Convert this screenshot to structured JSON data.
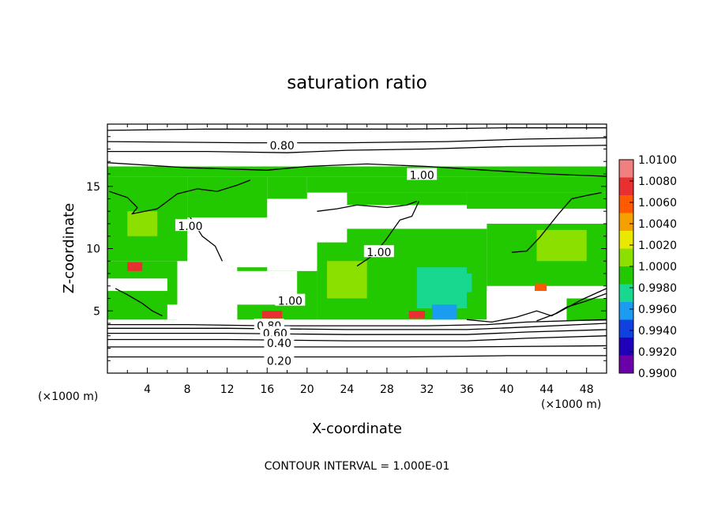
{
  "chart_data": {
    "type": "heatmap",
    "title": "saturation ratio",
    "xlabel": "X-coordinate",
    "ylabel": "Z-coordinate",
    "x_unit_label": "(×1000 m)",
    "y_unit_label": "(×1000 m)",
    "xlim": [
      0,
      50
    ],
    "ylim": [
      0,
      20
    ],
    "x_ticks": [
      4,
      8,
      12,
      16,
      20,
      24,
      28,
      32,
      36,
      40,
      44,
      48
    ],
    "y_ticks": [
      5,
      10,
      15
    ],
    "footer": "CONTOUR INTERVAL = 1.000E-01",
    "colorbar": {
      "min": 0.99,
      "max": 1.01,
      "ticks": [
        "1.0100",
        "1.0080",
        "1.0060",
        "1.0040",
        "1.0020",
        "1.0000",
        "0.9980",
        "0.9960",
        "0.9940",
        "0.9920",
        "0.9900"
      ],
      "colors": [
        "#f08080",
        "#e83030",
        "#ff5a00",
        "#f5a000",
        "#e8e800",
        "#8ce000",
        "#22c800",
        "#18d890",
        "#1a9cf0",
        "#1040e0",
        "#2000b8",
        "#6a00a8"
      ]
    },
    "contour_labels": [
      {
        "text": "0.80",
        "x": 17.5,
        "z": 18.3
      },
      {
        "text": "1.00",
        "x": 31.5,
        "z": 15.9
      },
      {
        "text": "1.00",
        "x": 8.3,
        "z": 11.8
      },
      {
        "text": "1.00",
        "x": 27.2,
        "z": 9.7
      },
      {
        "text": "1.00",
        "x": 18.3,
        "z": 5.8
      },
      {
        "text": "0.80",
        "x": 16.2,
        "z": 3.8
      },
      {
        "text": "0.60",
        "x": 16.8,
        "z": 3.2
      },
      {
        "text": "0.40",
        "x": 17.2,
        "z": 2.4
      },
      {
        "text": "0.20",
        "x": 17.2,
        "z": 1.0
      }
    ],
    "contour_lines": [
      [
        [
          0,
          1.3
        ],
        [
          10,
          1.3
        ],
        [
          20,
          1.3
        ],
        [
          30,
          1.3
        ],
        [
          40,
          1.4
        ],
        [
          50,
          1.4
        ]
      ],
      [
        [
          0,
          2.1
        ],
        [
          12,
          2.1
        ],
        [
          24,
          2.1
        ],
        [
          36,
          2.1
        ],
        [
          50,
          2.2
        ]
      ],
      [
        [
          0,
          2.7
        ],
        [
          12,
          2.7
        ],
        [
          24,
          2.6
        ],
        [
          36,
          2.6
        ],
        [
          42,
          2.8
        ],
        [
          50,
          3.0
        ]
      ],
      [
        [
          0,
          3.2
        ],
        [
          12,
          3.2
        ],
        [
          24,
          3.1
        ],
        [
          36,
          3.1
        ],
        [
          42,
          3.3
        ],
        [
          50,
          3.5
        ]
      ],
      [
        [
          0,
          3.6
        ],
        [
          12,
          3.6
        ],
        [
          24,
          3.5
        ],
        [
          36,
          3.5
        ],
        [
          42,
          3.7
        ],
        [
          50,
          4.0
        ]
      ],
      [
        [
          0,
          3.9
        ],
        [
          8,
          3.9
        ],
        [
          16,
          3.8
        ],
        [
          24,
          3.8
        ],
        [
          32,
          3.8
        ],
        [
          38,
          3.9
        ],
        [
          42,
          4.1
        ],
        [
          50,
          4.3
        ]
      ],
      [
        [
          0,
          17.8
        ],
        [
          10,
          17.8
        ],
        [
          18,
          17.7
        ],
        [
          24,
          17.9
        ],
        [
          32,
          18.0
        ],
        [
          40,
          18.2
        ],
        [
          50,
          18.3
        ]
      ],
      [
        [
          0,
          18.6
        ],
        [
          14,
          18.5
        ],
        [
          24,
          18.5
        ],
        [
          34,
          18.6
        ],
        [
          42,
          18.8
        ],
        [
          50,
          18.9
        ]
      ],
      [
        [
          0,
          19.5
        ],
        [
          10,
          19.6
        ],
        [
          20,
          19.6
        ],
        [
          30,
          19.6
        ],
        [
          40,
          19.7
        ],
        [
          50,
          19.7
        ]
      ],
      [
        [
          0,
          16.9
        ],
        [
          8,
          16.5
        ],
        [
          16,
          16.3
        ],
        [
          20,
          16.6
        ],
        [
          26,
          16.8
        ],
        [
          32,
          16.6
        ],
        [
          38,
          16.3
        ],
        [
          44,
          16.0
        ],
        [
          50,
          15.8
        ]
      ],
      [
        [
          0.2,
          14.6
        ],
        [
          2,
          14.1
        ],
        [
          3,
          13.3
        ],
        [
          2.5,
          12.8
        ],
        [
          5,
          13.2
        ],
        [
          7,
          14.4
        ],
        [
          9,
          14.8
        ],
        [
          11,
          14.6
        ],
        [
          13,
          15.1
        ],
        [
          14.3,
          15.5
        ]
      ],
      [
        [
          8.3,
          12.5
        ],
        [
          9.5,
          11
        ],
        [
          10.8,
          10.2
        ],
        [
          11.5,
          9
        ]
      ],
      [
        [
          21,
          13
        ],
        [
          23,
          13.2
        ],
        [
          25,
          13.5
        ],
        [
          28,
          13.3
        ],
        [
          30,
          13.5
        ],
        [
          31,
          13.8
        ]
      ],
      [
        [
          25,
          8.6
        ],
        [
          26.5,
          9.4
        ],
        [
          27.8,
          10.6
        ],
        [
          29.3,
          12.3
        ],
        [
          30.5,
          12.6
        ],
        [
          31.2,
          13.8
        ]
      ],
      [
        [
          40.5,
          9.7
        ],
        [
          42,
          9.8
        ],
        [
          43.3,
          10.9
        ],
        [
          44,
          11.6
        ],
        [
          45.2,
          12.8
        ],
        [
          46.5,
          14
        ],
        [
          48.2,
          14.3
        ],
        [
          49.5,
          14.5
        ]
      ],
      [
        [
          0.8,
          6.8
        ],
        [
          2,
          6.3
        ],
        [
          3.5,
          5.6
        ],
        [
          4.5,
          5.0
        ],
        [
          5.5,
          4.6
        ]
      ],
      [
        [
          36,
          4.3
        ],
        [
          38.5,
          4.1
        ],
        [
          41,
          4.5
        ],
        [
          43,
          5.0
        ],
        [
          44.5,
          4.6
        ],
        [
          46,
          5.3
        ],
        [
          48,
          5.8
        ],
        [
          50,
          6.4
        ]
      ],
      [
        [
          43,
          4.2
        ],
        [
          45,
          4.8
        ],
        [
          47.5,
          5.9
        ],
        [
          50,
          6.8
        ]
      ]
    ],
    "heat_cells": [
      {
        "x0": 0,
        "x1": 50,
        "z0": 15.8,
        "z1": 16.6,
        "c": "#22c800"
      },
      {
        "x0": 0,
        "x1": 8,
        "z0": 9,
        "z1": 15.8,
        "c": "#22c800"
      },
      {
        "x0": 8,
        "x1": 16,
        "z0": 12.5,
        "z1": 15.8,
        "c": "#22c800"
      },
      {
        "x0": 16,
        "x1": 20,
        "z0": 14,
        "z1": 15.8,
        "c": "#22c800"
      },
      {
        "x0": 20,
        "x1": 50,
        "z0": 14.5,
        "z1": 15.8,
        "c": "#22c800"
      },
      {
        "x0": 24,
        "x1": 36,
        "z0": 13.5,
        "z1": 14.5,
        "c": "#22c800"
      },
      {
        "x0": 36,
        "x1": 50,
        "z0": 12.8,
        "z1": 14.5,
        "c": "#22c800"
      },
      {
        "x0": 21,
        "x1": 38,
        "z0": 4.3,
        "z1": 11.6,
        "c": "#22c800"
      },
      {
        "x0": 38,
        "x1": 50,
        "z0": 7,
        "z1": 12,
        "c": "#22c800"
      },
      {
        "x0": 0,
        "x1": 7,
        "z0": 4.3,
        "z1": 9,
        "c": "#22c800"
      },
      {
        "x0": 13,
        "x1": 21,
        "z0": 4.3,
        "z1": 8.5,
        "c": "#22c800"
      },
      {
        "x0": 45,
        "x1": 50,
        "z0": 4.2,
        "z1": 6,
        "c": "#22c800"
      },
      {
        "x0": 2,
        "x1": 5,
        "z0": 11,
        "z1": 13,
        "c": "#8ce000"
      },
      {
        "x0": 22,
        "x1": 26,
        "z0": 6,
        "z1": 9,
        "c": "#8ce000"
      },
      {
        "x0": 43,
        "x1": 48,
        "z0": 9,
        "z1": 11.5,
        "c": "#8ce000"
      },
      {
        "x0": 31,
        "x1": 36,
        "z0": 5.2,
        "z1": 8.5,
        "c": "#18d890"
      },
      {
        "x0": 32.5,
        "x1": 35,
        "z0": 4.3,
        "z1": 5.5,
        "c": "#1a9cf0"
      },
      {
        "x0": 34,
        "x1": 36.5,
        "z0": 6.5,
        "z1": 8.0,
        "c": "#18d890"
      },
      {
        "x0": 2,
        "x1": 3.5,
        "z0": 8.2,
        "z1": 8.9,
        "c": "#e83030"
      },
      {
        "x0": 15.5,
        "x1": 17.5,
        "z0": 4.4,
        "z1": 5.0,
        "c": "#e83030"
      },
      {
        "x0": 30.2,
        "x1": 31.8,
        "z0": 4.4,
        "z1": 5.0,
        "c": "#e83030"
      },
      {
        "x0": 42.8,
        "x1": 44,
        "z0": 6.4,
        "z1": 7.2,
        "c": "#ff5a00"
      },
      {
        "x0": 19.5,
        "x1": 24,
        "z0": 10.5,
        "z1": 14.0,
        "c": "#ffffff"
      },
      {
        "x0": 16,
        "x1": 21,
        "z0": 8.2,
        "z1": 12.0,
        "c": "#ffffff"
      },
      {
        "x0": 20,
        "x1": 38,
        "z0": 11.6,
        "z1": 13.0,
        "c": "#ffffff"
      },
      {
        "x0": 35,
        "x1": 50,
        "z0": 12.0,
        "z1": 13.2,
        "c": "#ffffff"
      },
      {
        "x0": 8,
        "x1": 19,
        "z0": 5.5,
        "z1": 8.2,
        "c": "#ffffff"
      },
      {
        "x0": 0,
        "x1": 6,
        "z0": 6.6,
        "z1": 7.6,
        "c": "#ffffff"
      },
      {
        "x0": 38,
        "x1": 46,
        "z0": 4.2,
        "z1": 6.6,
        "c": "#ffffff"
      },
      {
        "x0": 6,
        "x1": 13,
        "z0": 4.3,
        "z1": 5.5,
        "c": "#ffffff"
      }
    ]
  }
}
